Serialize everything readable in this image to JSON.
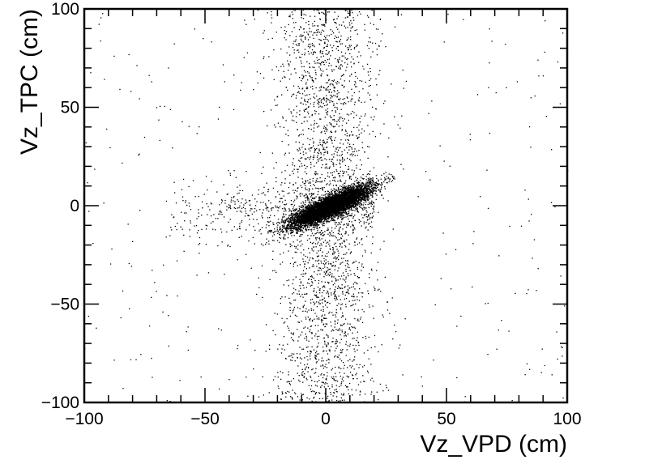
{
  "chart_data": {
    "type": "scatter",
    "title": "",
    "xlabel": "Vz_VPD (cm)",
    "ylabel": "Vz_TPC (cm)",
    "xlim": [
      -100,
      100
    ],
    "ylim": [
      -100,
      100
    ],
    "x_ticks": [
      -100,
      -50,
      0,
      50,
      100
    ],
    "y_ticks": [
      -100,
      -50,
      0,
      50,
      100
    ],
    "x_tick_labels": [
      "−100",
      "−50",
      "0",
      "50",
      "100"
    ],
    "y_tick_labels": [
      "−100",
      "−50",
      "0",
      "50",
      "100"
    ],
    "grid": false,
    "legend": "none",
    "marker_color": "#000000",
    "distribution": {
      "core": {
        "x_center": 2,
        "y_center": 0,
        "x_spread": 8,
        "y_spread": 5,
        "correlation": 0.85
      },
      "vertical_band": {
        "x_center": 0,
        "x_spread": 8,
        "y_range": [
          -100,
          100
        ]
      },
      "horizontal_band": {
        "y_center": -2,
        "y_spread": 5,
        "x_range": [
          -70,
          20
        ]
      },
      "diffuse_background": {
        "x_range": [
          -100,
          100
        ],
        "y_range": [
          -100,
          100
        ]
      }
    }
  }
}
